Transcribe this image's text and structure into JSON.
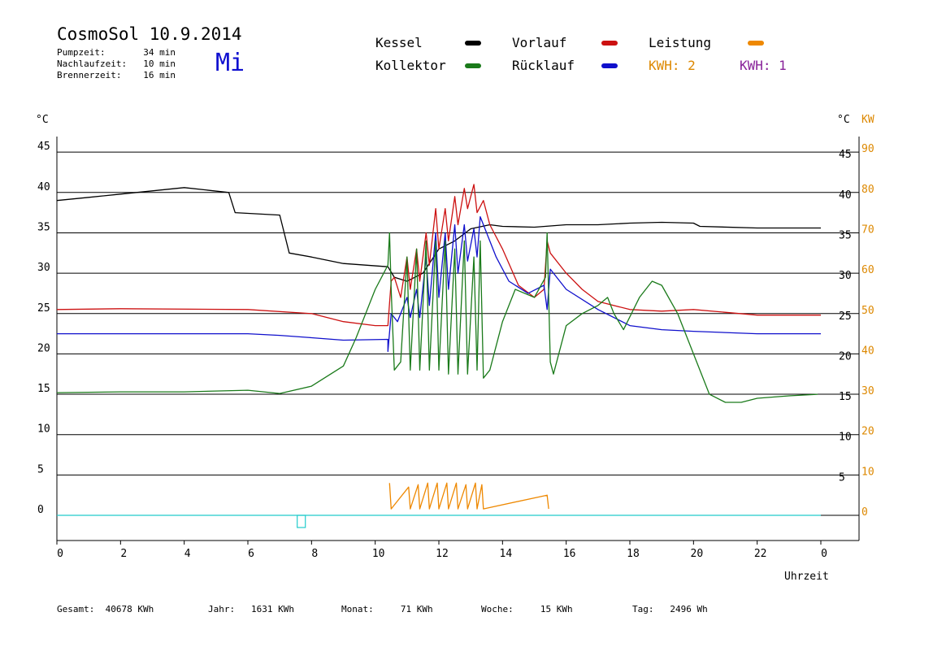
{
  "header": {
    "title": "CosmoSol 10.9.2014",
    "weekday": "Mi",
    "info": [
      {
        "label": "Pumpzeit:",
        "value": "34 min"
      },
      {
        "label": "Nachlaufzeit:",
        "value": "10 min"
      },
      {
        "label": "Brennerzeit:",
        "value": "16 min"
      }
    ]
  },
  "legend": {
    "kessel": "Kessel",
    "kollektor": "Kollektor",
    "vorlauf": "Vorlauf",
    "ruecklauf": "Rücklauf",
    "leistung": "Leistung",
    "kwh_left": "KWH: 2",
    "kwh_right": "KWH: 1"
  },
  "colors": {
    "kessel": "#000000",
    "kollektor": "#1a7a1a",
    "vorlauf": "#cc1111",
    "ruecklauf": "#1010cc",
    "leistung": "#ee8800",
    "kwh_right": "#882299",
    "baseline": "#22cccc"
  },
  "axes": {
    "left_unit": "°C",
    "right_unit": "°C",
    "right_unit2": "KW",
    "xlabel": "Uhrzeit"
  },
  "footer": [
    {
      "label": "Gesamt:",
      "value": "40678 KWh"
    },
    {
      "label": "Jahr:",
      "value": "1631 KWh"
    },
    {
      "label": "Monat:",
      "value": "71 KWh"
    },
    {
      "label": "Woche:",
      "value": "15 KWh"
    },
    {
      "label": "Tag:",
      "value": "2496 Wh"
    }
  ],
  "chart_data": {
    "type": "line",
    "x_unit": "hour",
    "xlim": [
      0,
      24
    ],
    "x_ticks": [
      "0",
      "2",
      "4",
      "6",
      "8",
      "10",
      "12",
      "14",
      "16",
      "18",
      "20",
      "22",
      "0"
    ],
    "ylim": [
      -3,
      47
    ],
    "y_ticks_left": [
      "0",
      "5",
      "10",
      "15",
      "20",
      "25",
      "30",
      "35",
      "40",
      "45"
    ],
    "y_ticks_right": [
      "5",
      "10",
      "15",
      "20",
      "25",
      "30",
      "35",
      "40",
      "45"
    ],
    "y_ticks_kw": [
      "0",
      "10",
      "20",
      "30",
      "40",
      "50",
      "60",
      "70",
      "80",
      "90"
    ],
    "grid": true,
    "series": [
      {
        "name": "Kessel",
        "color": "#000000",
        "points": [
          [
            0,
            39
          ],
          [
            1,
            39.4
          ],
          [
            2,
            39.8
          ],
          [
            3,
            40.2
          ],
          [
            4,
            40.6
          ],
          [
            5.4,
            40
          ],
          [
            5.6,
            37.5
          ],
          [
            7,
            37.2
          ],
          [
            7.3,
            32.5
          ],
          [
            8,
            32
          ],
          [
            9,
            31.2
          ],
          [
            10.4,
            30.8
          ],
          [
            10.6,
            29.5
          ],
          [
            11,
            29
          ],
          [
            11.5,
            30
          ],
          [
            12,
            33
          ],
          [
            12.5,
            34
          ],
          [
            13,
            35.5
          ],
          [
            13.6,
            36
          ],
          [
            14,
            35.8
          ],
          [
            15,
            35.7
          ],
          [
            16,
            36
          ],
          [
            17,
            36
          ],
          [
            18,
            36.2
          ],
          [
            19,
            36.3
          ],
          [
            20,
            36.2
          ],
          [
            20.2,
            35.8
          ],
          [
            22,
            35.6
          ],
          [
            24,
            35.6
          ]
        ]
      },
      {
        "name": "Vorlauf",
        "color": "#cc1111",
        "points": [
          [
            0,
            25.5
          ],
          [
            2,
            25.6
          ],
          [
            6,
            25.5
          ],
          [
            8,
            25
          ],
          [
            9,
            24
          ],
          [
            10,
            23.5
          ],
          [
            10.4,
            23.5
          ],
          [
            10.5,
            29
          ],
          [
            10.6,
            29.5
          ],
          [
            10.8,
            27
          ],
          [
            11,
            32
          ],
          [
            11.1,
            28
          ],
          [
            11.3,
            33
          ],
          [
            11.4,
            29
          ],
          [
            11.6,
            35
          ],
          [
            11.7,
            31
          ],
          [
            11.9,
            38
          ],
          [
            12,
            33
          ],
          [
            12.2,
            38
          ],
          [
            12.3,
            34
          ],
          [
            12.5,
            39.5
          ],
          [
            12.6,
            36
          ],
          [
            12.8,
            40.5
          ],
          [
            12.9,
            38
          ],
          [
            13.1,
            41
          ],
          [
            13.2,
            37.5
          ],
          [
            13.4,
            39
          ],
          [
            13.6,
            36
          ],
          [
            14,
            33
          ],
          [
            14.5,
            28.5
          ],
          [
            15,
            27
          ],
          [
            15.3,
            28
          ],
          [
            15.4,
            34
          ],
          [
            15.5,
            32.5
          ],
          [
            16,
            30
          ],
          [
            16.5,
            28
          ],
          [
            17,
            26.5
          ],
          [
            18,
            25.5
          ],
          [
            19,
            25.3
          ],
          [
            20,
            25.5
          ],
          [
            22,
            24.8
          ],
          [
            24,
            24.8
          ]
        ]
      },
      {
        "name": "Rücklauf",
        "color": "#1010cc",
        "points": [
          [
            0,
            22.5
          ],
          [
            4,
            22.5
          ],
          [
            6,
            22.5
          ],
          [
            7,
            22.3
          ],
          [
            8,
            22
          ],
          [
            9,
            21.7
          ],
          [
            10.4,
            21.8
          ],
          [
            10.4,
            20.3
          ],
          [
            10.5,
            25
          ],
          [
            10.7,
            24
          ],
          [
            11,
            27
          ],
          [
            11.1,
            24.5
          ],
          [
            11.3,
            28
          ],
          [
            11.4,
            24.5
          ],
          [
            11.6,
            32
          ],
          [
            11.7,
            26
          ],
          [
            11.9,
            35
          ],
          [
            12,
            27
          ],
          [
            12.2,
            35
          ],
          [
            12.3,
            28
          ],
          [
            12.5,
            36
          ],
          [
            12.6,
            30
          ],
          [
            12.8,
            36
          ],
          [
            12.9,
            31.5
          ],
          [
            13.1,
            35.5
          ],
          [
            13.2,
            32
          ],
          [
            13.3,
            37
          ],
          [
            13.4,
            36
          ],
          [
            13.8,
            32
          ],
          [
            14.2,
            29
          ],
          [
            14.8,
            27.5
          ],
          [
            15.3,
            28.5
          ],
          [
            15.4,
            25.5
          ],
          [
            15.5,
            30.5
          ],
          [
            16,
            28
          ],
          [
            17,
            25.5
          ],
          [
            18,
            23.5
          ],
          [
            19,
            23
          ],
          [
            20,
            22.8
          ],
          [
            22,
            22.5
          ],
          [
            24,
            22.5
          ]
        ]
      },
      {
        "name": "Kollektor",
        "color": "#1a7a1a",
        "points": [
          [
            0,
            15.2
          ],
          [
            2,
            15.3
          ],
          [
            4,
            15.3
          ],
          [
            6,
            15.5
          ],
          [
            7,
            15.1
          ],
          [
            8,
            16
          ],
          [
            9,
            18.5
          ],
          [
            9.4,
            22
          ],
          [
            10,
            28
          ],
          [
            10.4,
            31
          ],
          [
            10.45,
            35
          ],
          [
            10.5,
            28
          ],
          [
            10.6,
            18
          ],
          [
            10.8,
            19
          ],
          [
            11,
            32
          ],
          [
            11.1,
            18
          ],
          [
            11.3,
            33
          ],
          [
            11.4,
            18
          ],
          [
            11.6,
            34
          ],
          [
            11.7,
            18
          ],
          [
            11.9,
            34
          ],
          [
            12,
            18
          ],
          [
            12.2,
            34
          ],
          [
            12.3,
            17.5
          ],
          [
            12.5,
            33
          ],
          [
            12.6,
            17.5
          ],
          [
            12.8,
            34
          ],
          [
            12.9,
            17.5
          ],
          [
            13.1,
            32
          ],
          [
            13.2,
            18
          ],
          [
            13.3,
            34
          ],
          [
            13.4,
            17
          ],
          [
            13.6,
            18
          ],
          [
            14,
            24
          ],
          [
            14.4,
            28
          ],
          [
            15,
            27
          ],
          [
            15.35,
            29.5
          ],
          [
            15.4,
            35
          ],
          [
            15.5,
            19
          ],
          [
            15.6,
            17.5
          ],
          [
            16,
            23.5
          ],
          [
            16.5,
            25
          ],
          [
            17,
            26
          ],
          [
            17.3,
            27
          ],
          [
            17.5,
            25
          ],
          [
            17.8,
            23
          ],
          [
            18.3,
            27
          ],
          [
            18.7,
            29
          ],
          [
            19,
            28.5
          ],
          [
            19.5,
            25
          ],
          [
            20,
            20
          ],
          [
            20.5,
            15
          ],
          [
            21,
            14
          ],
          [
            21.5,
            14
          ],
          [
            22,
            14.5
          ],
          [
            23,
            14.8
          ],
          [
            23.9,
            15
          ]
        ]
      },
      {
        "name": "Leistung",
        "color": "#ee8800",
        "points": [
          [
            10.45,
            4
          ],
          [
            10.5,
            0.8
          ],
          [
            11.05,
            3.5
          ],
          [
            11.1,
            0.8
          ],
          [
            11.35,
            3.8
          ],
          [
            11.4,
            0.8
          ],
          [
            11.65,
            4
          ],
          [
            11.7,
            0.8
          ],
          [
            11.95,
            4
          ],
          [
            12,
            0.8
          ],
          [
            12.25,
            4
          ],
          [
            12.3,
            0.8
          ],
          [
            12.55,
            4
          ],
          [
            12.6,
            0.8
          ],
          [
            12.85,
            3.8
          ],
          [
            12.9,
            0.8
          ],
          [
            13.15,
            4
          ],
          [
            13.2,
            0.8
          ],
          [
            13.35,
            3.8
          ],
          [
            13.4,
            0.8
          ],
          [
            15.4,
            2.5
          ],
          [
            15.45,
            0.8
          ]
        ]
      }
    ]
  }
}
